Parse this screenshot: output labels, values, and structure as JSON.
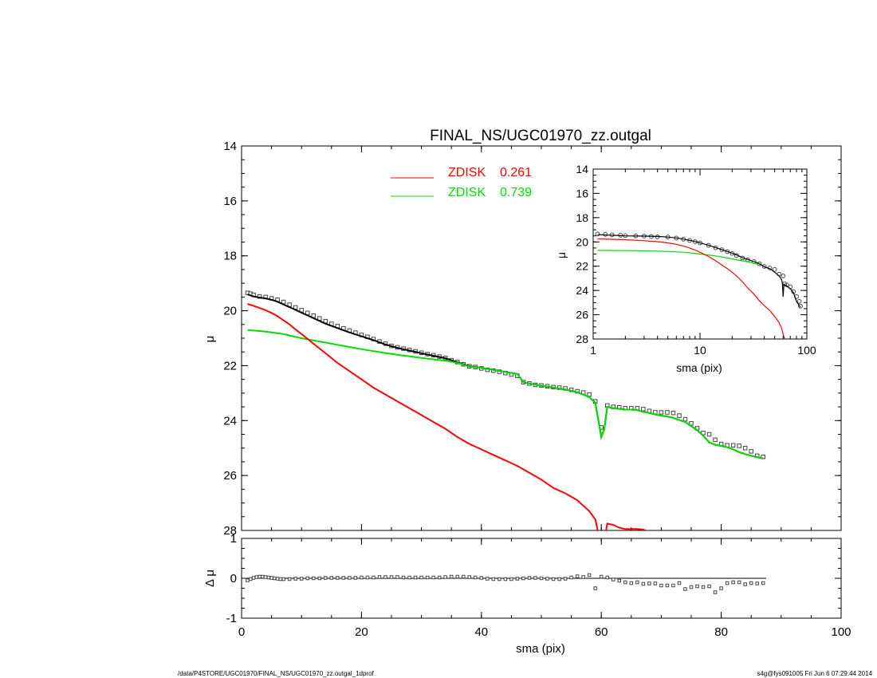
{
  "title": "FINAL_NS/UGC01970_zz.outgal",
  "footer_left": "/data/P4STORE/UGC01970/FINAL_NS/UGC01970_zz.outgal_1dprof",
  "footer_right": "s4g@fys091005  Fri Jun  6 07:29:44 2014",
  "colors": {
    "zdisk1": "#ff0000",
    "zdisk2": "#00dd00",
    "data": "#555555"
  },
  "chart_data": [
    {
      "panel": "main",
      "type": "line",
      "title": "FINAL_NS/UGC01970_zz.outgal",
      "xlabel": "",
      "ylabel": "μ",
      "xlim": [
        0,
        100
      ],
      "ylim": [
        28,
        14
      ],
      "xticks": [
        "0",
        "20",
        "40",
        "60",
        "80",
        "100"
      ],
      "yticks": [
        "14",
        "16",
        "18",
        "20",
        "22",
        "24",
        "26",
        "28"
      ],
      "legend": [
        {
          "name": "ZDISK",
          "value": "0.261",
          "color": "#ff0000"
        },
        {
          "name": "ZDISK",
          "value": "0.739",
          "color": "#00dd00"
        }
      ],
      "series": [
        {
          "name": "data",
          "style": "squares",
          "x": [
            1,
            1.5,
            2,
            3,
            4,
            5,
            6,
            7,
            8,
            9,
            10,
            11,
            12,
            13,
            14,
            15,
            16,
            17,
            18,
            19,
            20,
            21,
            22,
            23,
            24,
            25,
            26,
            27,
            28,
            29,
            30,
            31,
            32,
            33,
            34,
            35,
            36,
            37,
            38,
            39,
            40,
            41,
            42,
            43,
            44,
            45,
            46,
            47,
            48,
            49,
            50,
            51,
            52,
            53,
            54,
            55,
            56,
            57,
            58,
            59,
            60,
            61,
            62,
            63,
            64,
            65,
            66,
            67,
            68,
            69,
            70,
            71,
            72,
            73,
            74,
            75,
            76,
            77,
            78,
            79,
            80,
            81,
            82,
            83,
            84,
            85,
            86,
            87
          ],
          "y": [
            19.35,
            19.38,
            19.42,
            19.48,
            19.5,
            19.55,
            19.6,
            19.68,
            19.78,
            19.88,
            19.98,
            20.08,
            20.18,
            20.28,
            20.38,
            20.48,
            20.56,
            20.64,
            20.72,
            20.8,
            20.88,
            20.95,
            21.03,
            21.12,
            21.2,
            21.28,
            21.33,
            21.38,
            21.43,
            21.48,
            21.53,
            21.58,
            21.62,
            21.67,
            21.72,
            21.8,
            21.87,
            21.95,
            22.02,
            22.05,
            22.1,
            22.15,
            22.18,
            22.22,
            22.27,
            22.32,
            22.37,
            22.6,
            22.65,
            22.7,
            22.72,
            22.75,
            22.78,
            22.8,
            22.83,
            22.88,
            22.93,
            22.98,
            23.05,
            23.3,
            24.25,
            23.45,
            23.5,
            23.52,
            23.55,
            23.55,
            23.55,
            23.58,
            23.65,
            23.7,
            23.7,
            23.7,
            23.72,
            23.82,
            23.95,
            24.1,
            24.28,
            24.45,
            24.5,
            24.7,
            24.85,
            24.9,
            24.9,
            24.92,
            25.0,
            25.12,
            25.28,
            25.32
          ]
        },
        {
          "name": "model",
          "style": "line",
          "color": "#000000",
          "x": [
            1,
            2,
            3,
            4,
            5,
            6,
            7,
            8,
            9,
            10,
            12,
            14,
            16,
            18,
            20,
            22,
            24,
            26,
            28,
            30,
            32,
            34,
            36,
            38,
            40,
            42,
            44,
            46,
            47,
            48,
            50,
            52,
            54,
            56,
            57,
            58,
            59,
            60,
            60.5,
            61,
            62,
            63,
            64,
            65,
            66,
            67,
            68,
            69,
            70,
            71,
            72,
            73,
            74,
            75,
            76,
            77,
            78,
            79,
            80,
            81,
            82,
            83,
            84,
            85,
            86,
            87
          ],
          "y": [
            19.4,
            19.48,
            19.52,
            19.55,
            19.6,
            19.67,
            19.77,
            19.87,
            19.97,
            20.07,
            20.27,
            20.47,
            20.63,
            20.79,
            20.93,
            21.07,
            21.23,
            21.35,
            21.45,
            21.55,
            21.64,
            21.73,
            21.88,
            22.02,
            22.08,
            22.15,
            22.23,
            22.3,
            22.6,
            22.65,
            22.73,
            22.8,
            22.87,
            22.97,
            23.05,
            23.15,
            23.35,
            24.6,
            24.3,
            23.5,
            23.55,
            23.57,
            23.6,
            23.6,
            23.62,
            23.68,
            23.72,
            23.78,
            23.82,
            23.85,
            23.9,
            23.98,
            24.05,
            24.2,
            24.35,
            24.55,
            24.8,
            24.88,
            24.92,
            24.97,
            25.05,
            25.15,
            25.22,
            25.28,
            25.33,
            25.38
          ]
        },
        {
          "name": "ZDISK 0.739",
          "style": "line",
          "color": "#00dd00",
          "x": [
            1,
            2,
            3,
            4,
            5,
            6,
            7,
            8,
            9,
            10,
            12,
            14,
            16,
            18,
            20,
            22,
            24,
            26,
            28,
            30,
            32,
            34,
            36,
            38,
            40,
            42,
            44,
            46,
            47,
            48,
            50,
            52,
            54,
            56,
            57,
            58,
            59,
            60,
            60.5,
            61,
            62,
            63,
            64,
            65,
            66,
            67,
            68,
            69,
            70,
            71,
            72,
            73,
            74,
            75,
            76,
            77,
            78,
            79,
            80,
            81,
            82,
            83,
            84,
            85,
            86,
            87
          ],
          "y": [
            20.7,
            20.72,
            20.74,
            20.76,
            20.79,
            20.82,
            20.85,
            20.9,
            20.95,
            21.0,
            21.08,
            21.16,
            21.24,
            21.32,
            21.4,
            21.47,
            21.54,
            21.6,
            21.66,
            21.72,
            21.77,
            21.82,
            21.9,
            22.03,
            22.08,
            22.15,
            22.23,
            22.3,
            22.6,
            22.65,
            22.73,
            22.8,
            22.87,
            22.97,
            23.05,
            23.15,
            23.35,
            24.6,
            24.3,
            23.5,
            23.55,
            23.57,
            23.6,
            23.6,
            23.62,
            23.68,
            23.72,
            23.78,
            23.82,
            23.85,
            23.9,
            23.98,
            24.05,
            24.2,
            24.35,
            24.55,
            24.8,
            24.88,
            24.92,
            24.97,
            25.05,
            25.15,
            25.22,
            25.28,
            25.33,
            25.38
          ]
        },
        {
          "name": "ZDISK 0.261",
          "style": "line",
          "color": "#ff0000",
          "x": [
            1,
            2,
            3,
            4,
            5,
            6,
            7,
            8,
            9,
            10,
            12,
            14,
            16,
            18,
            20,
            22,
            24,
            26,
            28,
            30,
            32,
            34,
            36,
            38,
            40,
            42,
            44,
            46,
            48,
            50,
            52,
            54,
            56,
            57,
            58,
            59,
            59.6,
            60,
            60.3,
            61,
            62,
            63,
            64,
            65,
            66,
            67,
            68
          ],
          "y": [
            19.75,
            19.82,
            19.9,
            19.98,
            20.08,
            20.2,
            20.35,
            20.5,
            20.68,
            20.85,
            21.2,
            21.55,
            21.9,
            22.2,
            22.5,
            22.8,
            23.05,
            23.3,
            23.55,
            23.8,
            24.05,
            24.3,
            24.6,
            24.85,
            25.05,
            25.25,
            25.45,
            25.65,
            25.9,
            26.15,
            26.45,
            26.65,
            26.9,
            27.1,
            27.3,
            27.6,
            28.2,
            28.5,
            28.6,
            27.75,
            27.8,
            27.9,
            27.95,
            27.95,
            27.95,
            27.97,
            28.05
          ]
        }
      ]
    },
    {
      "panel": "inset",
      "type": "line",
      "xlabel": "sma (pix)",
      "ylabel": "μ",
      "xscale": "log",
      "xlim": [
        1,
        100
      ],
      "ylim": [
        28,
        14
      ],
      "xticks": [
        "1",
        "10",
        "100"
      ],
      "yticks": [
        "14",
        "16",
        "18",
        "20",
        "22",
        "24",
        "26",
        "28"
      ],
      "series": [
        {
          "name": "data",
          "style": "circles",
          "x": [
            1.1,
            1.3,
            1.5,
            1.8,
            2,
            2.5,
            3,
            3.5,
            4,
            5,
            6,
            7,
            8,
            9,
            10,
            12,
            14,
            16,
            18,
            20,
            22,
            25,
            28,
            32,
            36,
            40,
            45,
            50,
            55,
            60,
            62,
            65,
            70,
            75,
            80,
            85,
            87
          ],
          "y": [
            19.35,
            19.38,
            19.42,
            19.45,
            19.48,
            19.5,
            19.52,
            19.55,
            19.58,
            19.6,
            19.68,
            19.78,
            19.88,
            19.98,
            20.08,
            20.28,
            20.48,
            20.64,
            20.8,
            20.95,
            21.12,
            21.33,
            21.48,
            21.62,
            21.8,
            22.02,
            22.15,
            22.27,
            22.65,
            22.8,
            23.45,
            23.55,
            23.7,
            24.1,
            24.5,
            24.9,
            25.3
          ]
        },
        {
          "name": "model",
          "style": "line",
          "color": "#000000",
          "x": [
            1.1,
            1.5,
            2,
            3,
            4,
            5,
            6,
            7,
            8,
            9,
            10,
            12,
            14,
            16,
            18,
            20,
            22,
            25,
            28,
            32,
            36,
            40,
            45,
            50,
            55,
            58,
            59,
            60,
            61,
            63,
            65,
            70,
            75,
            80,
            85,
            87
          ],
          "y": [
            19.4,
            19.45,
            19.5,
            19.52,
            19.55,
            19.6,
            19.67,
            19.77,
            19.87,
            19.97,
            20.07,
            20.27,
            20.47,
            20.63,
            20.79,
            20.93,
            21.07,
            21.3,
            21.45,
            21.62,
            21.8,
            22.05,
            22.2,
            22.5,
            22.8,
            23.1,
            23.4,
            24.5,
            23.5,
            23.58,
            23.62,
            23.85,
            24.2,
            24.9,
            25.25,
            25.38
          ]
        },
        {
          "name": "ZDISK 0.739",
          "style": "line",
          "color": "#00dd00",
          "x": [
            1.1,
            2,
            3,
            4,
            5,
            6,
            7,
            8,
            10,
            12,
            14,
            16,
            18,
            20,
            25,
            30,
            35
          ],
          "y": [
            20.7,
            20.72,
            20.74,
            20.76,
            20.79,
            20.82,
            20.85,
            20.9,
            21.0,
            21.08,
            21.16,
            21.24,
            21.32,
            21.4,
            21.55,
            21.7,
            21.85
          ]
        },
        {
          "name": "ZDISK 0.261",
          "style": "line",
          "color": "#ff0000",
          "x": [
            1.1,
            2,
            3,
            4,
            5,
            6,
            7,
            8,
            9,
            10,
            12,
            14,
            16,
            18,
            20,
            22,
            25,
            28,
            32,
            36,
            40,
            45,
            50,
            55,
            58,
            60,
            62,
            65
          ],
          "y": [
            19.75,
            19.82,
            19.9,
            19.98,
            20.08,
            20.2,
            20.35,
            20.5,
            20.68,
            20.85,
            21.2,
            21.55,
            21.9,
            22.2,
            22.5,
            22.8,
            23.3,
            23.8,
            24.3,
            24.85,
            25.25,
            25.65,
            26.15,
            26.65,
            27.1,
            27.6,
            28.0,
            28.1
          ]
        }
      ]
    },
    {
      "panel": "residual",
      "type": "scatter",
      "xlabel": "sma (pix)",
      "ylabel": "Δ μ",
      "xlim": [
        0,
        100
      ],
      "ylim": [
        -1,
        1
      ],
      "xticks": [
        "0",
        "20",
        "40",
        "60",
        "80",
        "100"
      ],
      "yticks": [
        "1",
        "0",
        "-1"
      ],
      "series": [
        {
          "name": "residual",
          "style": "squares",
          "x": [
            1,
            1.5,
            2,
            2.5,
            3,
            3.5,
            4,
            4.5,
            5,
            5.5,
            6,
            6.5,
            7,
            8,
            9,
            10,
            11,
            12,
            13,
            14,
            15,
            16,
            17,
            18,
            19,
            20,
            21,
            22,
            23,
            24,
            25,
            26,
            27,
            28,
            29,
            30,
            31,
            32,
            33,
            34,
            35,
            36,
            37,
            38,
            39,
            40,
            41,
            42,
            43,
            44,
            45,
            46,
            47,
            48,
            49,
            50,
            51,
            52,
            53,
            54,
            55,
            56,
            57,
            58,
            59,
            60,
            61,
            62,
            63,
            64,
            65,
            66,
            67,
            68,
            69,
            70,
            71,
            72,
            73,
            74,
            75,
            76,
            77,
            78,
            79,
            80,
            81,
            82,
            83,
            84,
            85,
            86,
            87
          ],
          "y": [
            -0.05,
            -0.02,
            0.01,
            0.03,
            0.04,
            0.04,
            0.03,
            0.02,
            0.01,
            0.0,
            -0.01,
            -0.02,
            -0.02,
            -0.02,
            -0.01,
            -0.01,
            0.0,
            0.0,
            0.0,
            0.01,
            0.01,
            0.01,
            0.01,
            0.01,
            0.01,
            0.02,
            0.02,
            0.02,
            0.03,
            0.03,
            0.03,
            0.03,
            0.02,
            0.02,
            0.02,
            0.02,
            0.02,
            0.02,
            0.02,
            0.03,
            0.04,
            0.04,
            0.04,
            0.03,
            0.02,
            0.01,
            -0.01,
            -0.02,
            -0.02,
            -0.02,
            -0.02,
            -0.01,
            0.0,
            0.01,
            0.01,
            0.0,
            -0.01,
            -0.02,
            -0.02,
            -0.01,
            0.02,
            0.05,
            0.03,
            0.08,
            -0.25,
            0.04,
            0.02,
            -0.03,
            -0.06,
            -0.1,
            -0.12,
            -0.1,
            -0.14,
            -0.13,
            -0.13,
            -0.18,
            -0.18,
            -0.18,
            -0.12,
            -0.27,
            -0.22,
            -0.2,
            -0.22,
            -0.2,
            -0.35,
            -0.25,
            -0.12,
            -0.1,
            -0.1,
            -0.15,
            -0.12,
            -0.13,
            -0.12
          ]
        }
      ]
    }
  ]
}
